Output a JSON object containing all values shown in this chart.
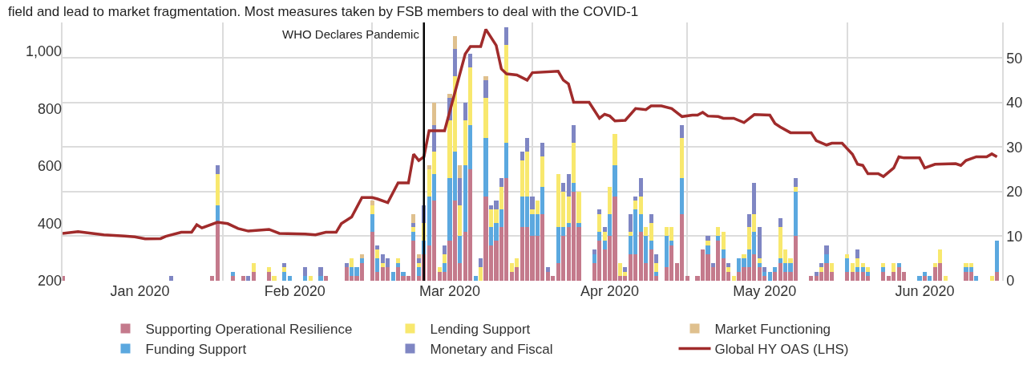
{
  "chart_data": {
    "type": "bar",
    "stacked": true,
    "annotations": [
      "field and lead to market fragmentation. Most measures taken by FSB members to deal with the COVID-1"
    ],
    "x": [
      "2020-01-01",
      "2020-01-22",
      "2020-01-30",
      "2020-01-31",
      "2020-02-03",
      "2020-02-05",
      "2020-02-06",
      "2020-02-07",
      "2020-02-10",
      "2020-02-11",
      "2020-02-13",
      "2020-02-14",
      "2020-02-17",
      "2020-02-18",
      "2020-02-20",
      "2020-02-21",
      "2020-02-25",
      "2020-02-26",
      "2020-02-27",
      "2020-02-28",
      "2020-03-01",
      "2020-03-02",
      "2020-03-03",
      "2020-03-04",
      "2020-03-05",
      "2020-03-06",
      "2020-03-07",
      "2020-03-08",
      "2020-03-09",
      "2020-03-10",
      "2020-03-11",
      "2020-03-12",
      "2020-03-13",
      "2020-03-14",
      "2020-03-15",
      "2020-03-16",
      "2020-03-17",
      "2020-03-18",
      "2020-03-19",
      "2020-03-20",
      "2020-03-21",
      "2020-03-22",
      "2020-03-23",
      "2020-03-24",
      "2020-03-25",
      "2020-03-26",
      "2020-03-27",
      "2020-03-28",
      "2020-03-29",
      "2020-03-30",
      "2020-03-31",
      "2020-04-01",
      "2020-04-02",
      "2020-04-03",
      "2020-04-04",
      "2020-04-05",
      "2020-04-06",
      "2020-04-07",
      "2020-04-08",
      "2020-04-09",
      "2020-04-10",
      "2020-04-13",
      "2020-04-14",
      "2020-04-15",
      "2020-04-16",
      "2020-04-17",
      "2020-04-18",
      "2020-04-19",
      "2020-04-20",
      "2020-04-21",
      "2020-04-22",
      "2020-04-23",
      "2020-04-24",
      "2020-04-25",
      "2020-04-27",
      "2020-04-28",
      "2020-04-29",
      "2020-04-30",
      "2020-05-01",
      "2020-05-03",
      "2020-05-04",
      "2020-05-05",
      "2020-05-06",
      "2020-05-07",
      "2020-05-08",
      "2020-05-09",
      "2020-05-10",
      "2020-05-11",
      "2020-05-12",
      "2020-05-13",
      "2020-05-14",
      "2020-05-15",
      "2020-05-16",
      "2020-05-17",
      "2020-05-18",
      "2020-05-19",
      "2020-05-20",
      "2020-05-21",
      "2020-05-22",
      "2020-05-25",
      "2020-05-26",
      "2020-05-27",
      "2020-05-28",
      "2020-05-29",
      "2020-06-01",
      "2020-06-02",
      "2020-06-03",
      "2020-06-04",
      "2020-06-05",
      "2020-06-08",
      "2020-06-09",
      "2020-06-10",
      "2020-06-11",
      "2020-06-12",
      "2020-06-15",
      "2020-06-16",
      "2020-06-17",
      "2020-06-18",
      "2020-06-19",
      "2020-06-20",
      "2020-06-24",
      "2020-06-25",
      "2020-06-26",
      "2020-06-29",
      "2020-06-30"
    ],
    "series": [
      {
        "name": "Supporting Operational Resilience",
        "color": "#c47a8c",
        "axis": "y2",
        "values": [
          1,
          null,
          1,
          13,
          1,
          1,
          null,
          2,
          2,
          null,
          null,
          null,
          null,
          null,
          null,
          1,
          3,
          1,
          1,
          4,
          11,
          2,
          3,
          3,
          null,
          3,
          1,
          1,
          9,
          1,
          6,
          8,
          18,
          2,
          2,
          9,
          18,
          4,
          11,
          25,
          null,
          null,
          19,
          8,
          9,
          12,
          23,
          2,
          3,
          12,
          12,
          10,
          10,
          15,
          2,
          1,
          4,
          10,
          12,
          20,
          12,
          4,
          9,
          7,
          10,
          19,
          1,
          1,
          6,
          6,
          11,
          4,
          7,
          1,
          3,
          8,
          4,
          15,
          1,
          1,
          7,
          6,
          3,
          9,
          5,
          2,
          null,
          2,
          3,
          3,
          6,
          3,
          1,
          null,
          2,
          4,
          2,
          2,
          10,
          1,
          1,
          2,
          4,
          2,
          2,
          2,
          2,
          2,
          1,
          2,
          1,
          2,
          3,
          2,
          null,
          1,
          null,
          3,
          4,
          null,
          2,
          2,
          null,
          null,
          2
        ]
      },
      {
        "name": "Funding Support",
        "color": "#5ba8df",
        "axis": "y2",
        "values": [
          null,
          null,
          null,
          4,
          1,
          null,
          null,
          null,
          null,
          null,
          2,
          1,
          1,
          null,
          1,
          null,
          null,
          2,
          2,
          1,
          4,
          3,
          null,
          null,
          2,
          1,
          1,
          null,
          2,
          2,
          3,
          11,
          6,
          null,
          2,
          14,
          11,
          6,
          15,
          10,
          1,
          null,
          13,
          4,
          4,
          4,
          8,
          null,
          null,
          7,
          7,
          5,
          5,
          6,
          null,
          null,
          8,
          2,
          1,
          2,
          1,
          2,
          2,
          2,
          5,
          7,
          null,
          null,
          4,
          10,
          4,
          6,
          2,
          1,
          7,
          1,
          null,
          8,
          null,
          null,
          null,
          2,
          null,
          1,
          2,
          null,
          null,
          3,
          2,
          4,
          5,
          1,
          1,
          2,
          1,
          1,
          2,
          2,
          10,
          null,
          null,
          null,
          2,
          null,
          3,
          null,
          1,
          1,
          1,
          1,
          null,
          null,
          1,
          null,
          1,
          1,
          1,
          null,
          null,
          null,
          1,
          1,
          1,
          null,
          7
        ]
      },
      {
        "name": "Lending Support",
        "color": "#f8e86e",
        "axis": "y2",
        "values": [
          null,
          null,
          null,
          7,
          null,
          null,
          null,
          2,
          1,
          1,
          1,
          null,
          null,
          1,
          null,
          null,
          null,
          2,
          null,
          null,
          2,
          2,
          1,
          null,
          null,
          1,
          null,
          null,
          1,
          1,
          4,
          6,
          5,
          1,
          2,
          13,
          17,
          7,
          10,
          13,
          null,
          3,
          9,
          4,
          3,
          5,
          22,
          2,
          2,
          8,
          10,
          1,
          3,
          7,
          null,
          null,
          12,
          8,
          6,
          9,
          7,
          null,
          4,
          2,
          6,
          7,
          3,
          1,
          1,
          2,
          4,
          2,
          4,
          2,
          2,
          3,
          null,
          9,
          null,
          null,
          null,
          1,
          null,
          2,
          4,
          1,
          1,
          null,
          1,
          5,
          4,
          1,
          null,
          null,
          null,
          7,
          3,
          1,
          1,
          null,
          null,
          1,
          null,
          2,
          1,
          2,
          2,
          1,
          1,
          1,
          null,
          2,
          null,
          null,
          null,
          null,
          null,
          1,
          3,
          1,
          1,
          1,
          null,
          1,
          null
        ]
      },
      {
        "name": "Monetary and Fiscal",
        "color": "#7f86c3",
        "axis": "y2",
        "values": [
          null,
          1,
          null,
          2,
          null,
          null,
          1,
          null,
          null,
          null,
          1,
          null,
          2,
          null,
          2,
          null,
          1,
          null,
          null,
          null,
          null,
          1,
          2,
          2,
          null,
          null,
          null,
          null,
          1,
          1,
          4,
          null,
          6,
          null,
          2,
          5,
          6,
          6,
          4,
          3,
          null,
          2,
          4,
          1,
          2,
          2,
          4,
          null,
          null,
          2,
          3,
          3,
          null,
          3,
          1,
          null,
          null,
          2,
          5,
          4,
          null,
          1,
          1,
          1,
          null,
          null,
          null,
          1,
          4,
          1,
          4,
          null,
          2,
          2,
          null,
          null,
          null,
          3,
          null,
          null,
          null,
          1,
          1,
          null,
          null,
          1,
          null,
          null,
          null,
          3,
          7,
          7,
          1,
          null,
          null,
          2,
          null,
          null,
          2,
          null,
          1,
          1,
          2,
          null,
          null,
          null,
          2,
          null,
          null,
          null,
          null,
          null,
          null,
          null,
          null,
          null,
          null,
          null,
          null,
          null,
          null,
          null,
          null,
          null,
          null
        ]
      },
      {
        "name": "Market Functioning",
        "color": "#dfc08e",
        "axis": "y2",
        "values": [
          null,
          null,
          null,
          null,
          null,
          null,
          null,
          null,
          null,
          null,
          null,
          null,
          null,
          null,
          null,
          null,
          null,
          null,
          null,
          1,
          1,
          null,
          null,
          null,
          null,
          null,
          null,
          null,
          2,
          1,
          null,
          1,
          5,
          null,
          null,
          1,
          3,
          3,
          null,
          null,
          null,
          null,
          1,
          null,
          null,
          null,
          null,
          null,
          null,
          null,
          null,
          null,
          null,
          null,
          null,
          null,
          null,
          null,
          null,
          null,
          null,
          null,
          null,
          null,
          null,
          null,
          null,
          null,
          null,
          null,
          null,
          null,
          null,
          null,
          null,
          null,
          null,
          null,
          null,
          null,
          null,
          null,
          null,
          null,
          null,
          null,
          null,
          null,
          null,
          null,
          null,
          null,
          null,
          null,
          null,
          null,
          null,
          null,
          null,
          null,
          null,
          null,
          null,
          null,
          null,
          null,
          null,
          null,
          null,
          null,
          null,
          null,
          null,
          null,
          null,
          null,
          null,
          null,
          null,
          null,
          null,
          null,
          null,
          null,
          null
        ]
      },
      {
        "name": "Global HY OAS (LHS)",
        "color": "#a02b2b",
        "type": "line",
        "axis": "y",
        "x": [
          "2020-01-01",
          "2020-01-04",
          "2020-01-09",
          "2020-01-13",
          "2020-01-15",
          "2020-01-17",
          "2020-01-20",
          "2020-01-21",
          "2020-01-24",
          "2020-01-26",
          "2020-01-27",
          "2020-01-28",
          "2020-01-31",
          "2020-02-02",
          "2020-02-04",
          "2020-02-06",
          "2020-02-10",
          "2020-02-12",
          "2020-02-17",
          "2020-02-19",
          "2020-02-21",
          "2020-02-23",
          "2020-02-24",
          "2020-02-26",
          "2020-02-28",
          "2020-03-01",
          "2020-03-02",
          "2020-03-04",
          "2020-03-06",
          "2020-03-08",
          "2020-03-09",
          "2020-03-10",
          "2020-03-11",
          "2020-03-12",
          "2020-03-15",
          "2020-03-17",
          "2020-03-19",
          "2020-03-20",
          "2020-03-22",
          "2020-03-23",
          "2020-03-25",
          "2020-03-26",
          "2020-03-27",
          "2020-03-29",
          "2020-03-31",
          "2020-04-01",
          "2020-04-06",
          "2020-04-07",
          "2020-04-08",
          "2020-04-09",
          "2020-04-12",
          "2020-04-14",
          "2020-04-15",
          "2020-04-16",
          "2020-04-17",
          "2020-04-19",
          "2020-04-21",
          "2020-04-23",
          "2020-04-24",
          "2020-04-26",
          "2020-04-28",
          "2020-04-30",
          "2020-05-02",
          "2020-05-03",
          "2020-05-04",
          "2020-05-05",
          "2020-05-07",
          "2020-05-08",
          "2020-05-10",
          "2020-05-12",
          "2020-05-14",
          "2020-05-17",
          "2020-05-18",
          "2020-05-19",
          "2020-05-21",
          "2020-05-25",
          "2020-05-26",
          "2020-05-28",
          "2020-05-29",
          "2020-05-31",
          "2020-06-02",
          "2020-06-03",
          "2020-06-04",
          "2020-06-05",
          "2020-06-07",
          "2020-06-08",
          "2020-06-10",
          "2020-06-11",
          "2020-06-12",
          "2020-06-15",
          "2020-06-16",
          "2020-06-18",
          "2020-06-22",
          "2020-06-23",
          "2020-06-24",
          "2020-06-26",
          "2020-06-28",
          "2020-06-29",
          "2020-06-30"
        ],
        "values": [
          365,
          371,
          360,
          356,
          353,
          346,
          347,
          355,
          369,
          369,
          395,
          384,
          404,
          399,
          382,
          373,
          379,
          365,
          363,
          360,
          369,
          369,
          399,
          422,
          490,
          490,
          485,
          472,
          541,
          541,
          641,
          619,
          632,
          723,
          723,
          856,
          990,
          1016,
          1016,
          1076,
          1020,
          938,
          921,
          917,
          899,
          925,
          930,
          899,
          886,
          822,
          822,
          766,
          780,
          774,
          757,
          759,
          800,
          796,
          809,
          809,
          800,
          772,
          777,
          777,
          787,
          774,
          772,
          766,
          766,
          751,
          779,
          777,
          748,
          736,
          716,
          716,
          688,
          673,
          679,
          679,
          641,
          606,
          602,
          573,
          573,
          563,
          593,
          632,
          628,
          628,
          593,
          606,
          608,
          602,
          619,
          632,
          632,
          642,
          632
        ]
      }
    ],
    "xlim": [
      "2020-01-01",
      "2020-07-01"
    ],
    "xticks": [
      {
        "value": "2020-01-01",
        "label": null
      },
      {
        "value": "2020-02-01",
        "label": null
      },
      {
        "value": "2020-03-01",
        "label": null
      },
      {
        "value": "2020-04-01",
        "label": null
      },
      {
        "value": "2020-05-01",
        "label": null
      },
      {
        "value": "2020-06-01",
        "label": null
      },
      {
        "value": "2020-07-01",
        "label": null
      },
      {
        "value": "2020-01-16",
        "label": "Jan 2020"
      },
      {
        "value": "2020-02-15",
        "label": "Feb 2020"
      },
      {
        "value": "2020-03-16",
        "label": "Mar 2020"
      },
      {
        "value": "2020-04-16",
        "label": "Apr 2020"
      },
      {
        "value": "2020-05-16",
        "label": "May 2020"
      },
      {
        "value": "2020-06-16",
        "label": "Jun 2020"
      }
    ],
    "ylim": [
      200,
      1100
    ],
    "yticks": [
      200,
      400,
      600,
      800,
      {
        "value": 1000,
        "label": "1,000"
      }
    ],
    "y2lim": [
      0,
      58
    ],
    "y2ticks": [
      0,
      10,
      20,
      30,
      40,
      50
    ],
    "ref_lines": [
      {
        "axis": "x",
        "value": "2020-03-11",
        "label": "WHO Declares Pandemic",
        "color": "#000000"
      }
    ],
    "grid": true,
    "legend": "bottom"
  }
}
